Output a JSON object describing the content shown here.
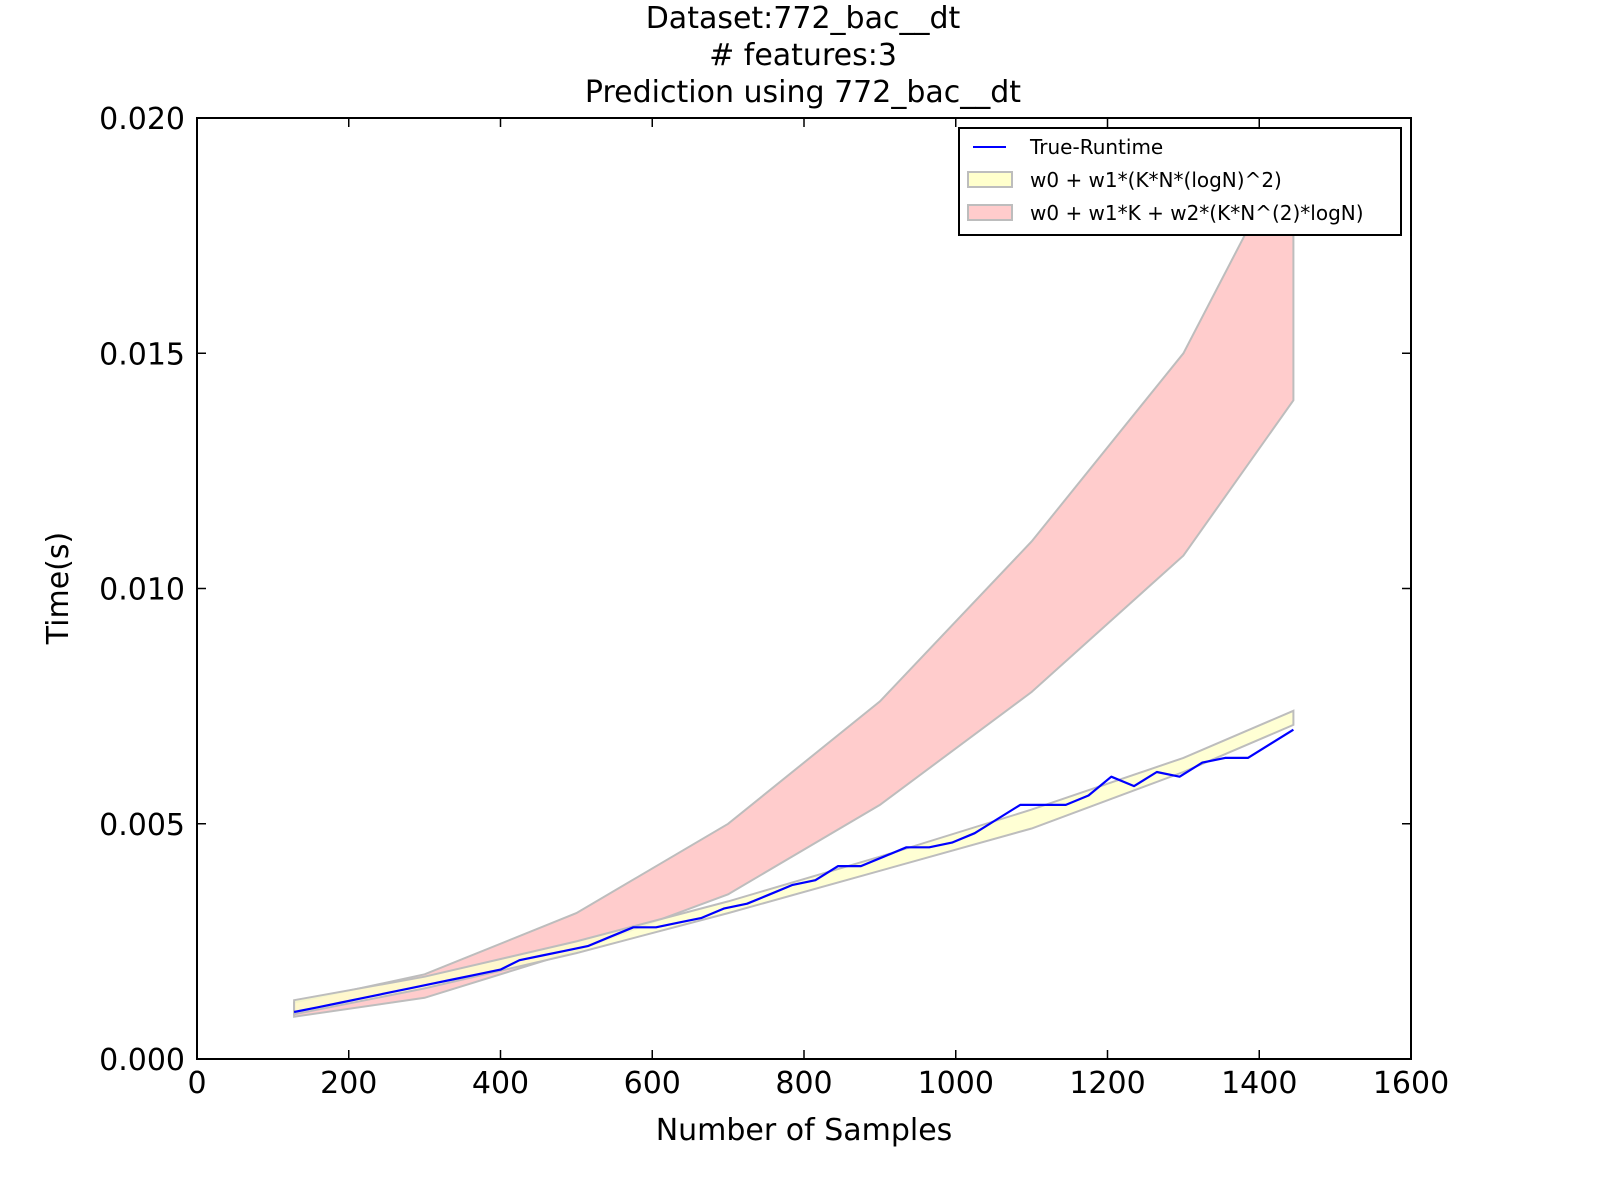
{
  "chart_data": {
    "type": "line",
    "title_lines": [
      "Dataset:772_bac__dt",
      "# features:3",
      "Prediction using 772_bac__dt"
    ],
    "xlabel": "Number of Samples",
    "ylabel": "Time(s)",
    "xlim": [
      0,
      1600
    ],
    "ylim": [
      0,
      0.02
    ],
    "xticks": [
      0,
      200,
      400,
      600,
      800,
      1000,
      1200,
      1400,
      1600
    ],
    "xtick_labels": [
      "0",
      "200",
      "400",
      "600",
      "800",
      "1000",
      "1200",
      "1400",
      "1600"
    ],
    "yticks": [
      0,
      0.005,
      0.01,
      0.015,
      0.02
    ],
    "ytick_labels": [
      "0.000",
      "0.005",
      "0.010",
      "0.015",
      "0.020"
    ],
    "legend_position": "top-right",
    "series": [
      {
        "name": "True-Runtime",
        "kind": "line",
        "color": "#0000ff",
        "x": [
          128,
          160,
          190,
          220,
          250,
          280,
          310,
          340,
          370,
          400,
          425,
          455,
          485,
          515,
          545,
          575,
          605,
          635,
          665,
          695,
          725,
          755,
          785,
          815,
          845,
          875,
          905,
          935,
          965,
          995,
          1025,
          1055,
          1085,
          1115,
          1145,
          1175,
          1205,
          1235,
          1265,
          1295,
          1325,
          1355,
          1385,
          1445
        ],
        "y": [
          0.001,
          0.0011,
          0.0012,
          0.0013,
          0.0014,
          0.0015,
          0.0016,
          0.0017,
          0.0018,
          0.0019,
          0.0021,
          0.0022,
          0.0023,
          0.0024,
          0.0026,
          0.0028,
          0.0028,
          0.0029,
          0.003,
          0.0032,
          0.0033,
          0.0035,
          0.0037,
          0.0038,
          0.0041,
          0.0041,
          0.0043,
          0.0045,
          0.0045,
          0.0046,
          0.0048,
          0.0051,
          0.0054,
          0.0054,
          0.0054,
          0.0056,
          0.006,
          0.0058,
          0.0061,
          0.006,
          0.0063,
          0.0064,
          0.0064,
          0.007
        ]
      },
      {
        "name": "w0 + w1*(K*N*(logN)^2)",
        "kind": "band",
        "color": "#ffffcc",
        "edge_color": "#bdbdbd",
        "x": [
          128,
          300,
          500,
          700,
          900,
          1100,
          1300,
          1445
        ],
        "lower": [
          0.00095,
          0.0015,
          0.00225,
          0.0031,
          0.004,
          0.0049,
          0.0061,
          0.0071
        ],
        "upper": [
          0.00125,
          0.00175,
          0.0025,
          0.00335,
          0.0043,
          0.0053,
          0.0064,
          0.0074
        ]
      },
      {
        "name": "w0 + w1*K + w2*(K*N^(2)*logN)",
        "kind": "band",
        "color": "#ffcccc",
        "edge_color": "#bdbdbd",
        "x": [
          128,
          300,
          500,
          700,
          900,
          1100,
          1300,
          1445
        ],
        "lower": [
          0.0009,
          0.0013,
          0.0023,
          0.0035,
          0.0054,
          0.0078,
          0.0107,
          0.014
        ],
        "upper": [
          0.0012,
          0.0018,
          0.0031,
          0.005,
          0.0076,
          0.011,
          0.015,
          0.0195
        ]
      }
    ]
  }
}
